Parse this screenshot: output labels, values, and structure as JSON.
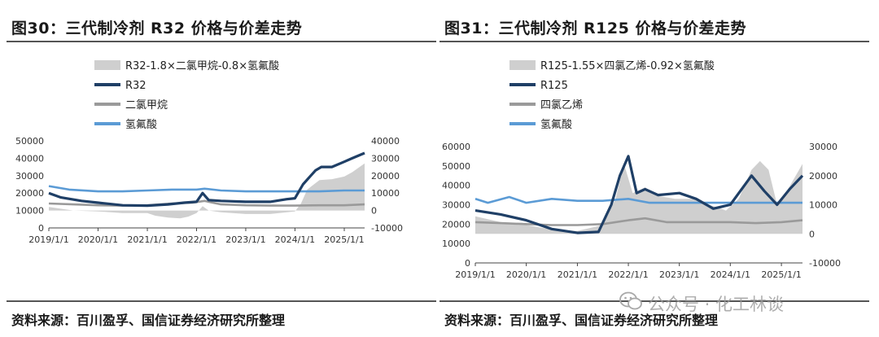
{
  "panels": [
    {
      "title": "图30：三代制冷剂 R32 价格与价差走势",
      "source": "资料来源：百川盈孚、国信证券经济研究所整理",
      "chart_data": {
        "type": "line",
        "x_range": [
          "2019-01-01",
          "2025-06-01"
        ],
        "xtick_labels": [
          "2019/1/1",
          "2020/1/1",
          "2021/1/1",
          "2022/1/1",
          "2023/1/1",
          "2024/1/1",
          "2025/1/1"
        ],
        "y_left": {
          "ylim": [
            0,
            50000
          ],
          "ticks": [
            "0",
            "10000",
            "20000",
            "30000",
            "40000",
            "50000"
          ]
        },
        "y_right": {
          "ylim": [
            -10000,
            40000
          ],
          "ticks": [
            "-10000",
            "0",
            "10000",
            "20000",
            "30000",
            "40000"
          ]
        },
        "legend": [
          "R32-1.8×二氯甲烷-0.8×氢氟酸",
          "R32",
          "二氯甲烷",
          "氢氟酸"
        ],
        "series": [
          {
            "name": "R32-1.8×二氯甲烷-0.8×氢氟酸",
            "axis": "right",
            "style": "area",
            "color": "#cfcfcf",
            "points": [
              [
                "2019-01-01",
                2000
              ],
              [
                "2019-07-01",
                0
              ],
              [
                "2020-01-01",
                -500
              ],
              [
                "2020-07-01",
                -1500
              ],
              [
                "2021-01-01",
                -1500
              ],
              [
                "2021-03-01",
                -3000
              ],
              [
                "2021-06-01",
                -4000
              ],
              [
                "2021-09-01",
                -4500
              ],
              [
                "2021-11-01",
                -3500
              ],
              [
                "2022-01-01",
                -1500
              ],
              [
                "2022-02-15",
                2500
              ],
              [
                "2022-04-01",
                0
              ],
              [
                "2022-07-01",
                -1000
              ],
              [
                "2023-01-01",
                -2000
              ],
              [
                "2023-07-01",
                -2000
              ],
              [
                "2024-01-01",
                -500
              ],
              [
                "2024-02-15",
                4000
              ],
              [
                "2024-04-01",
                12000
              ],
              [
                "2024-07-01",
                17500
              ],
              [
                "2024-10-01",
                18000
              ],
              [
                "2025-01-01",
                19500
              ],
              [
                "2025-03-01",
                22000
              ],
              [
                "2025-06-01",
                27000
              ]
            ]
          },
          {
            "name": "R32",
            "axis": "left",
            "style": "line",
            "color": "#1f3f66",
            "points": [
              [
                "2019-01-01",
                20000
              ],
              [
                "2019-04-01",
                17500
              ],
              [
                "2019-09-01",
                15500
              ],
              [
                "2020-01-01",
                14500
              ],
              [
                "2020-07-01",
                13000
              ],
              [
                "2021-01-01",
                12800
              ],
              [
                "2021-06-01",
                13500
              ],
              [
                "2021-10-01",
                14500
              ],
              [
                "2022-01-01",
                15000
              ],
              [
                "2022-02-15",
                20000
              ],
              [
                "2022-04-01",
                16000
              ],
              [
                "2022-07-01",
                15500
              ],
              [
                "2023-01-01",
                15000
              ],
              [
                "2023-07-01",
                15000
              ],
              [
                "2023-11-01",
                16500
              ],
              [
                "2024-01-01",
                17000
              ],
              [
                "2024-03-01",
                25000
              ],
              [
                "2024-06-01",
                33000
              ],
              [
                "2024-07-15",
                35000
              ],
              [
                "2024-10-01",
                35000
              ],
              [
                "2025-01-01",
                38000
              ],
              [
                "2025-03-01",
                40000
              ],
              [
                "2025-06-01",
                43000
              ]
            ]
          },
          {
            "name": "二氯甲烷",
            "axis": "left",
            "style": "line",
            "color": "#9a9a9a",
            "points": [
              [
                "2019-01-01",
                14000
              ],
              [
                "2019-07-01",
                13500
              ],
              [
                "2020-01-01",
                13000
              ],
              [
                "2020-07-01",
                12800
              ],
              [
                "2021-01-01",
                13000
              ],
              [
                "2021-07-01",
                14000
              ],
              [
                "2021-12-01",
                14500
              ],
              [
                "2022-03-01",
                15500
              ],
              [
                "2022-07-01",
                13500
              ],
              [
                "2023-01-01",
                13000
              ],
              [
                "2023-07-01",
                12800
              ],
              [
                "2024-01-01",
                12800
              ],
              [
                "2024-07-01",
                13000
              ],
              [
                "2025-01-01",
                13000
              ],
              [
                "2025-06-01",
                13500
              ]
            ]
          },
          {
            "name": "氢氟酸",
            "axis": "left",
            "style": "line",
            "color": "#5b9bd5",
            "points": [
              [
                "2019-01-01",
                24000
              ],
              [
                "2019-06-01",
                22000
              ],
              [
                "2020-01-01",
                21000
              ],
              [
                "2020-07-01",
                21000
              ],
              [
                "2021-01-01",
                21500
              ],
              [
                "2021-07-01",
                22000
              ],
              [
                "2022-01-01",
                22000
              ],
              [
                "2022-03-01",
                22500
              ],
              [
                "2022-07-01",
                21500
              ],
              [
                "2023-01-01",
                21000
              ],
              [
                "2023-07-01",
                21000
              ],
              [
                "2024-01-01",
                21000
              ],
              [
                "2024-07-01",
                21000
              ],
              [
                "2025-01-01",
                21500
              ],
              [
                "2025-06-01",
                21500
              ]
            ]
          }
        ]
      }
    },
    {
      "title": "图31：三代制冷剂 R125 价格与价差走势",
      "source": "资料来源：百川盈孚、国信证券经济研究所整理",
      "chart_data": {
        "type": "line",
        "x_range": [
          "2019-01-01",
          "2025-06-01"
        ],
        "xtick_labels": [
          "2019/1/1",
          "2020/1/1",
          "2021/1/1",
          "2022/1/1",
          "2023/1/1",
          "2024/1/1",
          "2025/1/1"
        ],
        "y_left": {
          "ylim": [
            0,
            60000
          ],
          "ticks": [
            "0",
            "10000",
            "20000",
            "30000",
            "40000",
            "50000",
            "60000"
          ]
        },
        "y_right": {
          "ylim": [
            -10000,
            30000
          ],
          "ticks": [
            "-10000",
            "0",
            "10000",
            "20000",
            "30000"
          ]
        },
        "legend": [
          "R125-1.55×四氯乙烯-0.92×氢氟酸",
          "R125",
          "四氯乙烯",
          "氢氟酸"
        ],
        "series": [
          {
            "name": "R125-1.55×四氯乙烯-0.92×氢氟酸",
            "axis": "right",
            "style": "area",
            "color": "#cfcfcf",
            "points": [
              [
                "2019-01-01",
                6000
              ],
              [
                "2019-07-01",
                4000
              ],
              [
                "2020-01-01",
                3000
              ],
              [
                "2020-07-01",
                1500
              ],
              [
                "2021-01-01",
                1000
              ],
              [
                "2021-07-01",
                3000
              ],
              [
                "2021-10-01",
                12000
              ],
              [
                "2021-12-01",
                24000
              ],
              [
                "2022-02-01",
                14000
              ],
              [
                "2022-05-01",
                16000
              ],
              [
                "2022-08-01",
                13000
              ],
              [
                "2022-12-01",
                12000
              ],
              [
                "2023-04-01",
                12000
              ],
              [
                "2023-08-01",
                10000
              ],
              [
                "2023-12-01",
                8000
              ],
              [
                "2024-03-01",
                12000
              ],
              [
                "2024-06-01",
                22000
              ],
              [
                "2024-08-01",
                25000
              ],
              [
                "2024-10-01",
                22000
              ],
              [
                "2024-12-01",
                10000
              ],
              [
                "2025-02-01",
                14000
              ],
              [
                "2025-06-01",
                24000
              ]
            ]
          },
          {
            "name": "R125",
            "axis": "left",
            "style": "line",
            "color": "#1f3f66",
            "points": [
              [
                "2019-01-01",
                27000
              ],
              [
                "2019-07-01",
                25000
              ],
              [
                "2020-01-01",
                22000
              ],
              [
                "2020-07-01",
                17500
              ],
              [
                "2021-01-01",
                15500
              ],
              [
                "2021-06-01",
                16000
              ],
              [
                "2021-09-01",
                30000
              ],
              [
                "2021-11-01",
                45000
              ],
              [
                "2022-01-01",
                55000
              ],
              [
                "2022-03-01",
                36000
              ],
              [
                "2022-05-01",
                38000
              ],
              [
                "2022-08-01",
                35000
              ],
              [
                "2023-01-01",
                36000
              ],
              [
                "2023-05-01",
                33000
              ],
              [
                "2023-09-01",
                28000
              ],
              [
                "2024-01-01",
                30000
              ],
              [
                "2024-06-01",
                45000
              ],
              [
                "2024-09-01",
                37000
              ],
              [
                "2024-12-01",
                30000
              ],
              [
                "2025-03-01",
                38000
              ],
              [
                "2025-06-01",
                45000
              ]
            ]
          },
          {
            "name": "四氯乙烯",
            "axis": "left",
            "style": "line",
            "color": "#9a9a9a",
            "points": [
              [
                "2019-01-01",
                21000
              ],
              [
                "2019-07-01",
                20500
              ],
              [
                "2020-01-01",
                20000
              ],
              [
                "2020-07-01",
                19500
              ],
              [
                "2021-01-01",
                19500
              ],
              [
                "2021-07-01",
                20000
              ],
              [
                "2022-01-01",
                22000
              ],
              [
                "2022-05-01",
                23000
              ],
              [
                "2022-10-01",
                21000
              ],
              [
                "2023-01-01",
                21000
              ],
              [
                "2023-07-01",
                21000
              ],
              [
                "2024-01-01",
                21000
              ],
              [
                "2024-07-01",
                20500
              ],
              [
                "2025-01-01",
                21000
              ],
              [
                "2025-06-01",
                22000
              ]
            ]
          },
          {
            "name": "氢氟酸",
            "axis": "left",
            "style": "line",
            "color": "#5b9bd5",
            "points": [
              [
                "2019-01-01",
                33000
              ],
              [
                "2019-04-01",
                31000
              ],
              [
                "2019-09-01",
                34000
              ],
              [
                "2020-01-01",
                31000
              ],
              [
                "2020-07-01",
                33000
              ],
              [
                "2021-01-01",
                32000
              ],
              [
                "2021-07-01",
                32000
              ],
              [
                "2022-01-01",
                33000
              ],
              [
                "2022-06-01",
                31000
              ],
              [
                "2023-01-01",
                31000
              ],
              [
                "2023-07-01",
                31000
              ],
              [
                "2024-01-01",
                31000
              ],
              [
                "2024-07-01",
                31000
              ],
              [
                "2025-01-01",
                31000
              ],
              [
                "2025-06-01",
                31000
              ]
            ]
          }
        ]
      }
    }
  ],
  "watermark": {
    "text": "公众号 · 化工林谈",
    "icon": "wechat-icon"
  }
}
